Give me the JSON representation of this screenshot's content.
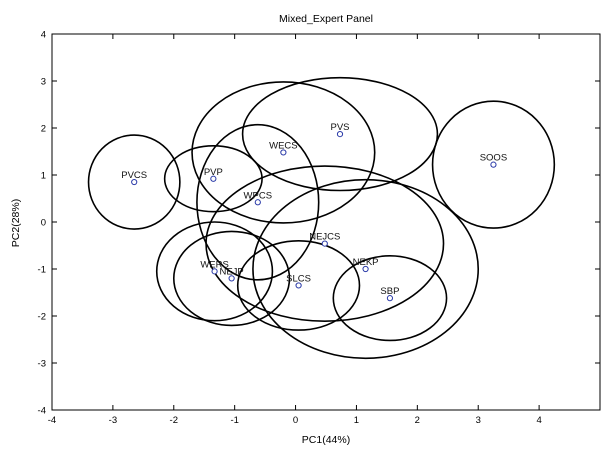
{
  "chart_data": {
    "type": "scatter",
    "title": "Mixed_Expert Panel",
    "xlabel": "PC1(44%)",
    "ylabel": "PC2(28%)",
    "xlim": [
      -4,
      5
    ],
    "ylim": [
      -4,
      4
    ],
    "xticks": [
      "-4",
      "-3",
      "-2",
      "-1",
      "0",
      "1",
      "2",
      "3",
      "4"
    ],
    "yticks": [
      "-4",
      "-3",
      "-2",
      "-1",
      "0",
      "1",
      "2",
      "3",
      "4"
    ],
    "grid": false,
    "legend": "none",
    "point_color": "#2a3aa8",
    "ellipse_color": "#000000",
    "points": [
      {
        "label": "PVCS",
        "x": -2.65,
        "y": 0.85,
        "rx": 0.75,
        "ry": 1.0
      },
      {
        "label": "PVP",
        "x": -1.35,
        "y": 0.92,
        "rx": 0.8,
        "ry": 0.7
      },
      {
        "label": "WECS",
        "x": -0.2,
        "y": 1.48,
        "rx": 1.5,
        "ry": 1.5
      },
      {
        "label": "PVS",
        "x": 0.73,
        "y": 1.87,
        "rx": 1.6,
        "ry": 1.2
      },
      {
        "label": "WPCS",
        "x": -0.62,
        "y": 0.42,
        "rx": 1.0,
        "ry": 1.65
      },
      {
        "label": "SOOS",
        "x": 3.25,
        "y": 1.22,
        "rx": 1.0,
        "ry": 1.35
      },
      {
        "label": "NEJCS",
        "x": 0.48,
        "y": -0.46,
        "rx": 1.95,
        "ry": 1.65
      },
      {
        "label": "NEKP",
        "x": 1.15,
        "y": -1.0,
        "rx": 1.85,
        "ry": 1.9
      },
      {
        "label": "WERS",
        "x": -1.33,
        "y": -1.05,
        "rx": 0.95,
        "ry": 1.05
      },
      {
        "label": "NEJP",
        "x": -1.05,
        "y": -1.2,
        "rx": 0.95,
        "ry": 1.0
      },
      {
        "label": "SLCS",
        "x": 0.05,
        "y": -1.35,
        "rx": 1.0,
        "ry": 0.95
      },
      {
        "label": "SBP",
        "x": 1.55,
        "y": -1.62,
        "rx": 0.93,
        "ry": 0.9
      }
    ]
  }
}
